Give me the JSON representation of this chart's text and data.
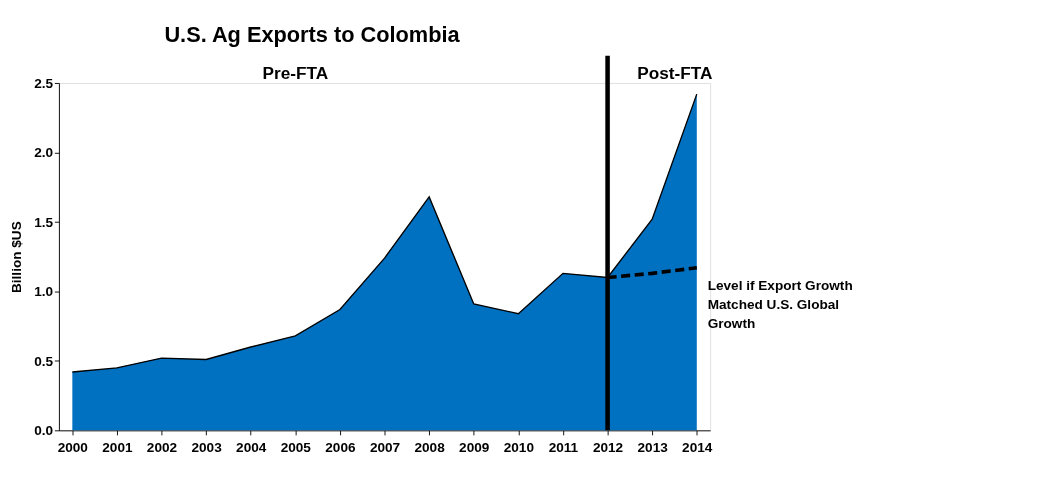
{
  "chart_data": {
    "type": "area",
    "title": "U.S. Ag Exports to Colombia",
    "ylabel": "Billion $US",
    "categories": [
      "2000",
      "2001",
      "2002",
      "2003",
      "2004",
      "2005",
      "2006",
      "2007",
      "2008",
      "2009",
      "2010",
      "2011",
      "2012",
      "2013",
      "2014"
    ],
    "series": [
      {
        "color": "#0070c0",
        "values": [
          0.42,
          0.45,
          0.52,
          0.51,
          0.6,
          0.68,
          0.87,
          1.24,
          1.68,
          0.91,
          0.84,
          1.13,
          1.1,
          1.52,
          2.42
        ]
      },
      {
        "type": "line",
        "name": "Level if Export Growth Matched U.S. Global Growth",
        "color": "#000000",
        "line_style": "dashed",
        "values": [
          null,
          null,
          null,
          null,
          null,
          null,
          null,
          null,
          null,
          null,
          null,
          null,
          1.1,
          1.13,
          1.17
        ]
      }
    ],
    "ylim": [
      0,
      2.5
    ],
    "yticks": [
      {
        "value": 0,
        "label": "0.0"
      },
      {
        "value": 0.5,
        "label": "0.5"
      },
      {
        "value": 1,
        "label": "1.0"
      },
      {
        "value": 1.5,
        "label": "1.5"
      },
      {
        "value": 2,
        "label": "2.0"
      },
      {
        "value": 2.5,
        "label": "2.5"
      }
    ],
    "ref_lines": [
      {
        "axis": "x",
        "value": "2012",
        "color": "#000000"
      }
    ],
    "annotations": [
      "Pre-FTA",
      "Post-FTA"
    ],
    "grid": false,
    "legend": false
  }
}
